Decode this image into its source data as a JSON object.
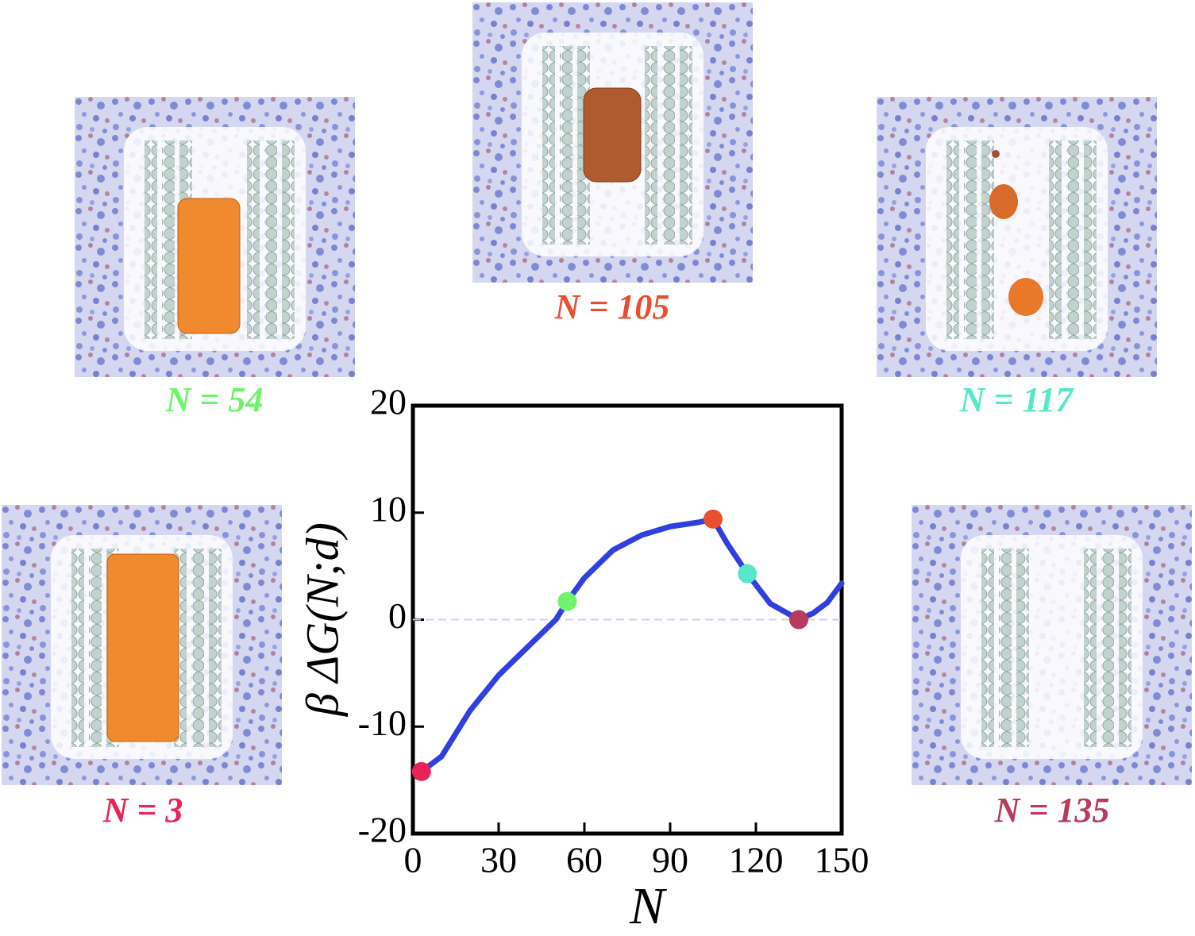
{
  "chart_data": {
    "type": "line",
    "x_label": "N",
    "y_label": "β ΔG(N;d)",
    "xlim": [
      0,
      150
    ],
    "xticks": [
      0,
      30,
      60,
      90,
      120,
      150
    ],
    "ylim": [
      -20,
      20
    ],
    "yticks": [
      -20,
      -10,
      0,
      10,
      20
    ],
    "zero_line": true,
    "line": {
      "color": "#2f3fe0",
      "x": [
        3,
        10,
        20,
        30,
        40,
        50,
        54,
        60,
        70,
        80,
        90,
        100,
        105,
        110,
        117,
        125,
        135,
        140,
        145,
        150
      ],
      "y": [
        -14.2,
        -12.8,
        -8.5,
        -5.2,
        -2.6,
        0,
        1.7,
        3.9,
        6.5,
        7.9,
        8.7,
        9.1,
        9.4,
        7.1,
        4.3,
        1.5,
        0,
        0.6,
        1.6,
        3.4
      ]
    },
    "markers": {
      "x": [
        3,
        54,
        105,
        117,
        135
      ],
      "y": [
        -14.2,
        1.7,
        9.4,
        4.3,
        0
      ],
      "colors": [
        "#e8235a",
        "#6ef46a",
        "#e94e2f",
        "#56e8c8",
        "#b83a5c"
      ],
      "labels": [
        "N = 3",
        "N = 54",
        "N = 105",
        "N = 117",
        "N = 135"
      ]
    }
  }
}
